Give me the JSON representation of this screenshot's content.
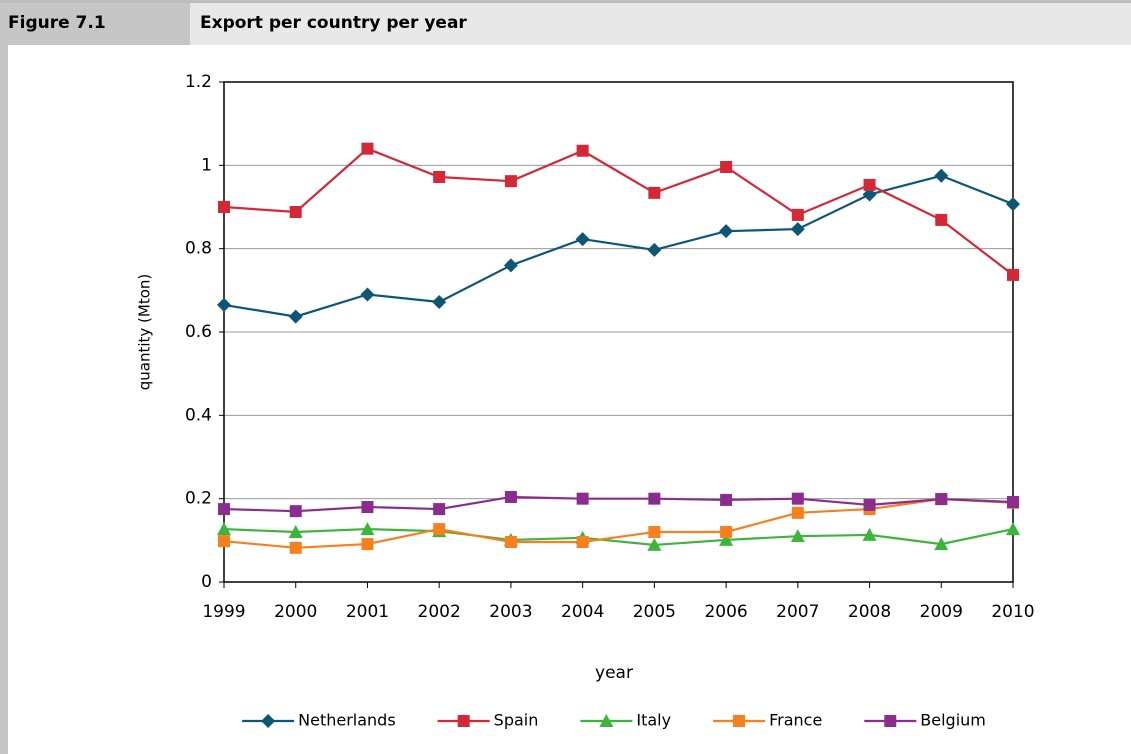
{
  "header": {
    "label": "Figure 7.1",
    "title": "Export per country per year"
  },
  "chart_data": {
    "type": "line",
    "x_label": "year",
    "y_label": "quantity (Mton)",
    "x": [
      1999,
      2000,
      2001,
      2002,
      2003,
      2004,
      2005,
      2006,
      2007,
      2008,
      2009,
      2010
    ],
    "xlim": [
      1999,
      2010
    ],
    "xticks": [
      1999,
      2000,
      2001,
      2002,
      2003,
      2004,
      2005,
      2006,
      2007,
      2008,
      2009,
      2010
    ],
    "ylim": [
      0,
      1.2
    ],
    "yticks": [
      0,
      0.2,
      0.4,
      0.6,
      0.8,
      1,
      1.2
    ],
    "grid": true,
    "legend": "bottom",
    "series": [
      {
        "name": "Netherlands",
        "color": "#0e5676",
        "marker": "diamond",
        "values": [
          0.665,
          0.637,
          0.69,
          0.672,
          0.76,
          0.823,
          0.797,
          0.842,
          0.847,
          0.93,
          0.975,
          0.907
        ]
      },
      {
        "name": "Spain",
        "color": "#d42836",
        "marker": "square",
        "values": [
          0.9,
          0.888,
          1.04,
          0.972,
          0.962,
          1.035,
          0.934,
          0.996,
          0.881,
          0.953,
          0.869,
          0.737
        ]
      },
      {
        "name": "Italy",
        "color": "#3db53d",
        "marker": "triangle",
        "values": [
          0.127,
          0.12,
          0.127,
          0.122,
          0.101,
          0.106,
          0.089,
          0.101,
          0.11,
          0.113,
          0.091,
          0.127
        ]
      },
      {
        "name": "France",
        "color": "#f7801e",
        "marker": "square",
        "values": [
          0.098,
          0.082,
          0.091,
          0.127,
          0.096,
          0.096,
          0.12,
          0.12,
          0.166,
          0.175,
          0.199,
          0.19
        ]
      },
      {
        "name": "Belgium",
        "color": "#8b2d8f",
        "marker": "square",
        "values": [
          0.175,
          0.17,
          0.18,
          0.175,
          0.204,
          0.2,
          0.2,
          0.197,
          0.2,
          0.185,
          0.199,
          0.192
        ]
      }
    ]
  }
}
